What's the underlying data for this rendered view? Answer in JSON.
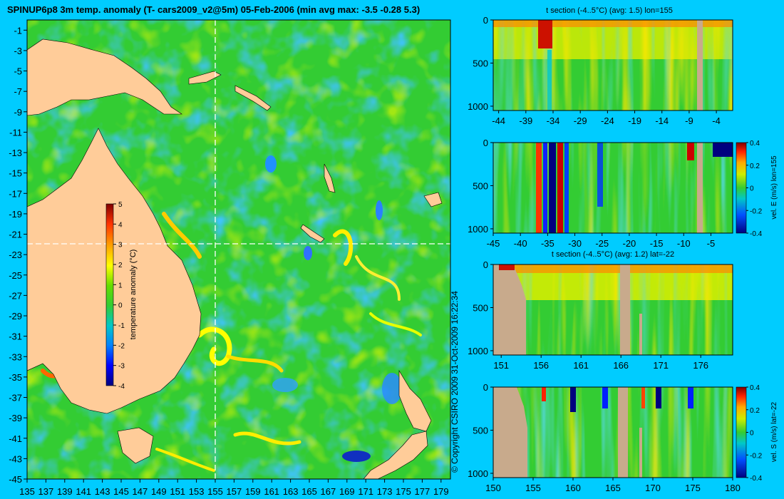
{
  "title": "SPINUP6p8 3m temp. anomaly (T- cars2009_v2@5m) 05-Feb-2006 (min avg max: -3.5 -0.28 5.3)",
  "copyright": "© Copyright CSIRO 2009   31-Oct-2009 16:22:34",
  "colors": {
    "background": "#00ccff",
    "land": "#ffcc99",
    "section_land": "#c8aa8c",
    "ocean_base": "#33cc33",
    "reference_line": "#ffffff"
  },
  "chart_data": [
    {
      "type": "heatmap",
      "id": "map",
      "title": "SPINUP6p8 3m temp. anomaly (T- cars2009_v2@5m) 05-Feb-2006 (min avg max: -3.5 -0.28 5.3)",
      "x_ticks": [
        "135",
        "137",
        "139",
        "141",
        "143",
        "145",
        "147",
        "149",
        "151",
        "153",
        "155",
        "157",
        "159",
        "161",
        "163",
        "165",
        "167",
        "169",
        "171",
        "173",
        "175",
        "177",
        "179"
      ],
      "y_ticks": [
        "-1",
        "-3",
        "-5",
        "-7",
        "-9",
        "-11",
        "-13",
        "-15",
        "-17",
        "-19",
        "-21",
        "-23",
        "-25",
        "-27",
        "-29",
        "-31",
        "-33",
        "-35",
        "-37",
        "-39",
        "-41",
        "-43",
        "-45"
      ],
      "xlim": [
        135,
        180
      ],
      "ylim": [
        -45,
        0
      ],
      "crosshair": {
        "lon": 155,
        "lat": -22
      },
      "colorbar": {
        "label": "temperature anomaly (°C)",
        "ticks": [
          "5",
          "4",
          "3",
          "2",
          "1",
          "0",
          "-1",
          "-2",
          "-3",
          "-4"
        ],
        "range": [
          -4,
          5
        ]
      }
    },
    {
      "type": "heatmap",
      "id": "temp_lon",
      "title": "t section (-4..5°C) (avg: 1.5) lon=155",
      "x_ticks": [
        "-44",
        "-39",
        "-34",
        "-29",
        "-24",
        "-19",
        "-14",
        "-9",
        "-4"
      ],
      "y_ticks": [
        "0",
        "500",
        "1000"
      ],
      "xlim": [
        -45,
        -1
      ],
      "ylim": [
        1050,
        0
      ]
    },
    {
      "type": "heatmap",
      "id": "vel_e",
      "title": "",
      "x_ticks": [
        "-45",
        "-40",
        "-35",
        "-30",
        "-25",
        "-20",
        "-15",
        "-10",
        "-5"
      ],
      "y_ticks": [
        "0",
        "500",
        "1000"
      ],
      "xlim": [
        -45,
        -1
      ],
      "ylim": [
        1050,
        0
      ],
      "colorbar": {
        "label": "vel. E (m/s) lon=155",
        "ticks": [
          "0.4",
          "0.2",
          "0",
          "-0.2",
          "-0.4"
        ],
        "range": [
          -0.4,
          0.4
        ]
      }
    },
    {
      "type": "heatmap",
      "id": "temp_lat",
      "title": "t section (-4..5°C) (avg: 1.2) lat=-22",
      "x_ticks": [
        "151",
        "156",
        "161",
        "166",
        "171",
        "176"
      ],
      "y_ticks": [
        "0",
        "500",
        "1000"
      ],
      "xlim": [
        150,
        180
      ],
      "ylim": [
        1050,
        0
      ]
    },
    {
      "type": "heatmap",
      "id": "vel_s",
      "title": "",
      "x_ticks": [
        "150",
        "155",
        "160",
        "165",
        "170",
        "175",
        "180"
      ],
      "y_ticks": [
        "0",
        "500",
        "1000"
      ],
      "xlim": [
        150,
        180
      ],
      "ylim": [
        1050,
        0
      ],
      "colorbar": {
        "label": "vel. S (m/s) lat=-22",
        "ticks": [
          "0.4",
          "0.2",
          "0",
          "-0.2",
          "-0.4"
        ],
        "range": [
          -0.4,
          0.4
        ]
      }
    }
  ]
}
